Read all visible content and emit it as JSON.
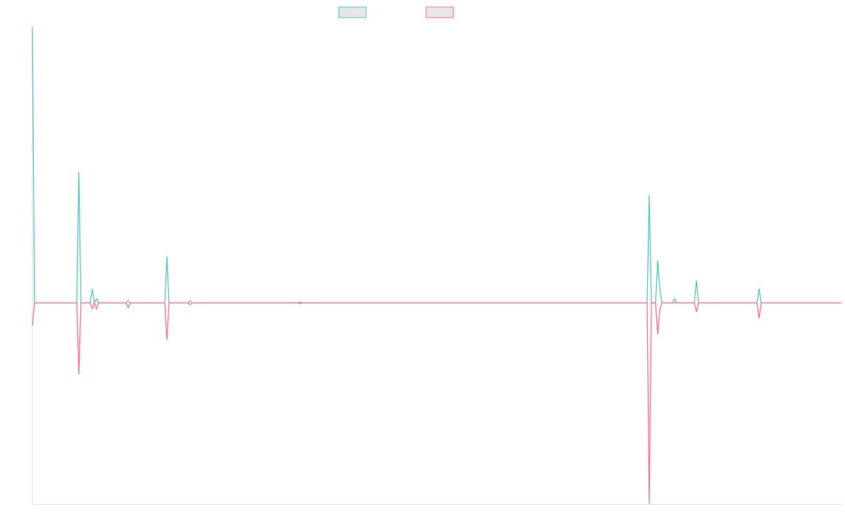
{
  "chart_data": {
    "type": "line",
    "x": [
      0,
      3,
      63,
      66,
      69,
      82,
      85,
      88,
      91,
      94,
      133,
      136,
      139,
      188,
      191,
      194,
      221,
      224,
      227,
      377,
      380,
      383,
      870,
      873,
      876,
      879,
      885,
      888,
      891,
      894,
      909,
      912,
      915,
      940,
      943,
      946,
      1029,
      1032,
      1035,
      1149
    ],
    "xlim": [
      0,
      1149
    ],
    "ylim": [
      -100,
      137.5
    ],
    "series": [
      {
        "color": "#4bc0c0",
        "values": [
          137,
          0,
          0,
          65,
          0,
          0,
          7,
          0,
          2,
          0,
          0,
          1,
          0,
          0,
          23,
          0,
          0,
          1,
          0,
          0,
          0.5,
          0,
          0,
          0,
          53.5,
          0,
          0,
          21,
          7,
          0,
          0,
          2,
          0,
          0,
          11,
          0,
          0,
          7,
          0,
          0
        ]
      },
      {
        "color": "#ff6384",
        "values": [
          -11.5,
          0,
          0,
          -35.7,
          0,
          0,
          -3,
          0,
          -3,
          0,
          0,
          -2.4,
          0,
          0,
          -18.5,
          0,
          0,
          -1,
          0,
          0,
          -0.5,
          0,
          0,
          0,
          -100,
          0,
          0,
          -15.7,
          -3.5,
          0,
          0,
          0,
          0,
          0,
          -4.5,
          0,
          0,
          -7.7,
          0,
          0
        ]
      }
    ]
  }
}
